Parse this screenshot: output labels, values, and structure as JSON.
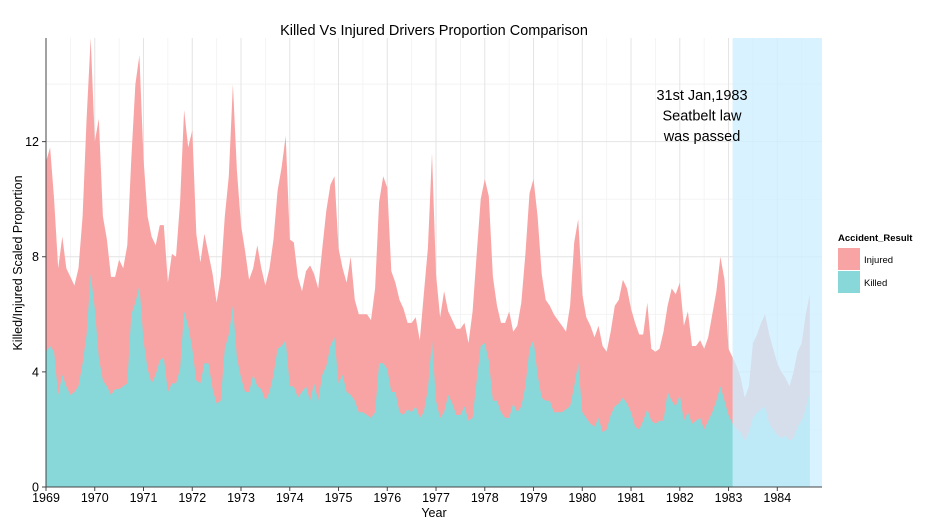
{
  "chart_data": {
    "type": "area",
    "title": "Killed Vs Injured Drivers Proportion Comparison",
    "xlabel": "Year",
    "ylabel": "Killed/Injured Scaled Proportion",
    "xlim": [
      1969,
      1984.917
    ],
    "ylim": [
      0,
      15.6
    ],
    "x_ticks": [
      "1969",
      "1970",
      "1971",
      "1972",
      "1973",
      "1974",
      "1975",
      "1976",
      "1977",
      "1978",
      "1979",
      "1980",
      "1981",
      "1982",
      "1983",
      "1984"
    ],
    "y_ticks": [
      "0",
      "4",
      "8",
      "12"
    ],
    "grid": true,
    "legend": {
      "title": "Accident_Result",
      "position": "right",
      "entries": [
        "Injured",
        "Killed"
      ]
    },
    "colors": {
      "Injured": "#F8A4A4",
      "Killed": "#88D8DA",
      "highlight": "#CDEEFF"
    },
    "highlight": {
      "x_start": 1983.083,
      "x_end": 1984.917,
      "annotation": [
        "31st Jan,1983",
        "Seatbelt law",
        "was passed"
      ]
    },
    "x_step_months": 1,
    "series": [
      {
        "name": "Injured",
        "values": [
          11.3,
          11.8,
          10.0,
          7.6,
          8.7,
          7.6,
          7.3,
          7.0,
          7.6,
          9.4,
          12.8,
          15.6,
          12.0,
          12.8,
          9.4,
          8.6,
          7.3,
          7.3,
          7.9,
          7.6,
          8.4,
          11.4,
          14.0,
          15.0,
          11.4,
          9.4,
          8.7,
          8.4,
          9.1,
          9.1,
          7.1,
          8.1,
          8.0,
          9.9,
          13.1,
          11.8,
          12.4,
          8.8,
          7.8,
          8.8,
          8.1,
          7.4,
          6.4,
          7.3,
          9.4,
          10.8,
          14.0,
          11.0,
          9.1,
          8.2,
          7.2,
          7.6,
          8.4,
          7.6,
          7.0,
          7.6,
          8.6,
          10.3,
          11.1,
          12.2,
          8.6,
          8.5,
          7.3,
          6.8,
          7.5,
          7.7,
          7.4,
          6.9,
          8.3,
          9.6,
          10.5,
          10.8,
          8.3,
          7.6,
          7.1,
          8.0,
          6.5,
          6.0,
          6.0,
          6.0,
          5.8,
          6.9,
          9.9,
          10.8,
          10.4,
          7.5,
          7.1,
          6.5,
          6.2,
          5.7,
          5.7,
          5.9,
          5.1,
          6.7,
          8.3,
          11.6,
          7.4,
          5.9,
          6.8,
          6.1,
          5.8,
          5.5,
          5.5,
          5.7,
          5.0,
          6.1,
          8.1,
          10.0,
          10.7,
          10.1,
          7.3,
          6.3,
          5.7,
          5.7,
          6.1,
          5.4,
          5.6,
          6.4,
          8.1,
          10.2,
          10.7,
          9.4,
          7.4,
          6.5,
          6.3,
          6.0,
          5.8,
          5.6,
          5.4,
          6.3,
          8.5,
          9.3,
          6.7,
          5.9,
          5.6,
          5.2,
          5.6,
          4.9,
          4.7,
          5.4,
          6.3,
          6.5,
          7.2,
          6.9,
          6.2,
          5.7,
          5.3,
          5.3,
          6.4,
          4.8,
          4.7,
          4.8,
          5.4,
          6.3,
          6.9,
          6.7,
          7.1,
          5.6,
          6.1,
          4.9,
          4.9,
          5.1,
          4.8,
          5.2,
          6.0,
          6.8,
          8.0,
          7.2,
          4.8,
          4.5,
          4.2,
          3.8,
          3.1,
          3.5,
          5.0,
          5.3,
          5.7,
          6.0,
          5.3,
          4.8,
          4.3,
          4.0,
          3.8,
          3.5,
          4.0,
          4.7,
          5.0,
          6.0,
          6.7
        ]
      },
      {
        "name": "Killed",
        "values": [
          4.7,
          4.9,
          4.7,
          3.2,
          3.9,
          3.5,
          3.2,
          3.3,
          3.5,
          4.3,
          5.3,
          7.4,
          6.2,
          4.5,
          3.7,
          3.5,
          3.2,
          3.4,
          3.4,
          3.5,
          3.6,
          6.0,
          6.4,
          7.0,
          5.1,
          4.1,
          3.6,
          3.9,
          4.4,
          4.5,
          3.3,
          3.6,
          3.6,
          4.1,
          6.1,
          5.6,
          4.8,
          3.7,
          3.6,
          4.3,
          4.3,
          3.4,
          2.9,
          3.0,
          4.8,
          5.3,
          6.3,
          4.5,
          3.8,
          3.3,
          3.3,
          3.9,
          3.5,
          3.4,
          3.0,
          3.3,
          3.9,
          4.8,
          4.9,
          5.1,
          3.5,
          3.5,
          3.1,
          3.3,
          3.5,
          3.0,
          3.6,
          3.0,
          3.9,
          4.2,
          4.9,
          5.2,
          3.6,
          3.9,
          3.3,
          3.2,
          3.0,
          2.6,
          2.6,
          2.5,
          2.4,
          2.6,
          4.3,
          4.3,
          4.1,
          3.3,
          3.3,
          2.6,
          2.5,
          2.7,
          2.6,
          2.8,
          2.4,
          2.6,
          3.4,
          5.1,
          3.0,
          2.4,
          2.6,
          3.2,
          2.9,
          2.5,
          2.5,
          2.8,
          2.3,
          2.4,
          3.7,
          4.9,
          5.0,
          4.4,
          3.0,
          3.0,
          2.6,
          2.4,
          2.4,
          2.9,
          2.6,
          2.8,
          3.5,
          4.8,
          5.1,
          3.9,
          3.1,
          3.0,
          3.0,
          2.6,
          2.6,
          2.6,
          2.7,
          2.8,
          3.5,
          4.3,
          2.6,
          2.4,
          2.2,
          2.1,
          2.4,
          1.9,
          2.0,
          2.5,
          2.8,
          2.9,
          3.1,
          2.9,
          2.6,
          2.1,
          2.0,
          2.3,
          2.7,
          2.3,
          2.2,
          2.3,
          2.3,
          3.3,
          3.0,
          2.8,
          3.2,
          2.3,
          2.6,
          2.2,
          2.3,
          2.4,
          2.0,
          2.3,
          2.6,
          3.0,
          3.5,
          3.0,
          2.5,
          2.2,
          2.0,
          1.9,
          1.6,
          1.9,
          2.4,
          2.6,
          2.7,
          2.8,
          2.2,
          2.0,
          1.8,
          1.7,
          1.8,
          1.6,
          1.7,
          2.1,
          2.3,
          2.7,
          3.3
        ]
      }
    ]
  }
}
